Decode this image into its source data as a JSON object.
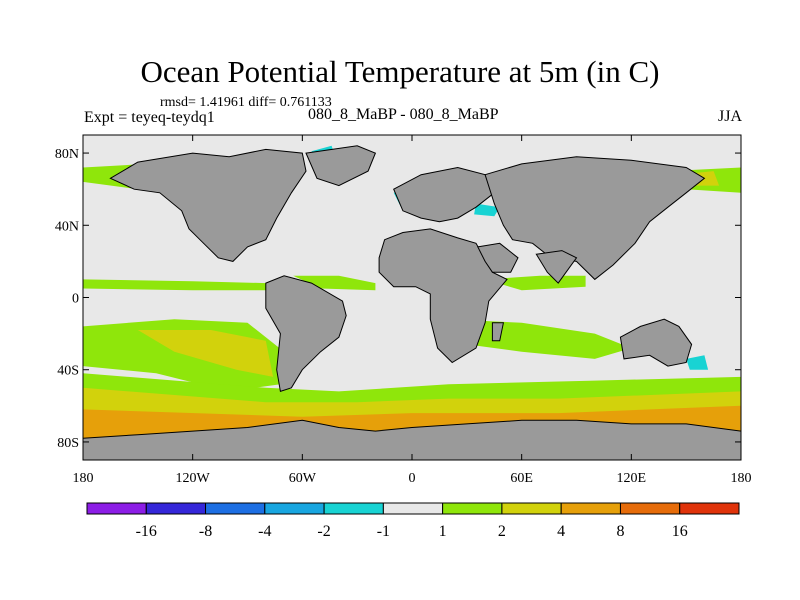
{
  "chart_data": {
    "type": "heatmap",
    "title": "Ocean Potential Temperature at 5m (in C)",
    "stats": "rmsd= 1.41961 diff= 0.761133",
    "experiment": "Expt = teyeq-teydq1",
    "center_label": "080_8_MaBP - 080_8_MaBP",
    "season": "JJA",
    "x_range": [
      -180,
      180
    ],
    "y_range": [
      -90,
      90
    ],
    "x_ticks": [
      {
        "value": -180,
        "label": "180"
      },
      {
        "value": -120,
        "label": "120W"
      },
      {
        "value": -60,
        "label": "60W"
      },
      {
        "value": 0,
        "label": "0"
      },
      {
        "value": 60,
        "label": "60E"
      },
      {
        "value": 120,
        "label": "120E"
      },
      {
        "value": 180,
        "label": "180"
      }
    ],
    "y_ticks": [
      {
        "value": 80,
        "label": "80N"
      },
      {
        "value": 40,
        "label": "40N"
      },
      {
        "value": 0,
        "label": "0"
      },
      {
        "value": -40,
        "label": "40S"
      },
      {
        "value": -80,
        "label": "80S"
      }
    ],
    "colorbar": {
      "colors": [
        "#8c1de6",
        "#3527d9",
        "#1d6fe3",
        "#18a6e0",
        "#18d3d3",
        "#e8e8e8",
        "#8fe60b",
        "#d2d20c",
        "#e6a00a",
        "#e66c0a",
        "#e0330a"
      ],
      "labels": [
        "-16",
        "-8",
        "-4",
        "-2",
        "-1",
        "1",
        "2",
        "4",
        "8",
        "16"
      ]
    },
    "land_color": "#9a9a9a",
    "regions": [
      {
        "name": "N Pacific warm band",
        "level": 2,
        "pts": [
          [
            -180,
            72
          ],
          [
            -145,
            74
          ],
          [
            -130,
            70
          ],
          [
            -128,
            62
          ],
          [
            -150,
            60
          ],
          [
            -180,
            64
          ]
        ]
      },
      {
        "name": "Arctic cool patch",
        "level": -1,
        "pts": [
          [
            -55,
            81
          ],
          [
            -44,
            84
          ],
          [
            -42,
            78
          ],
          [
            -52,
            76
          ]
        ]
      },
      {
        "name": "N Atlantic cool patch",
        "level": -1,
        "pts": [
          [
            -10,
            58
          ],
          [
            5,
            62
          ],
          [
            15,
            56
          ],
          [
            8,
            48
          ],
          [
            -6,
            50
          ]
        ]
      },
      {
        "name": "Med cool patch",
        "level": -1,
        "pts": [
          [
            35,
            52
          ],
          [
            48,
            50
          ],
          [
            45,
            45
          ],
          [
            34,
            46
          ]
        ]
      },
      {
        "name": "NE Pacific warm patch",
        "level": 2,
        "pts": [
          [
            140,
            70
          ],
          [
            180,
            72
          ],
          [
            180,
            58
          ],
          [
            150,
            60
          ]
        ]
      },
      {
        "name": "NE Pacific 4C patch",
        "level": 4,
        "pts": [
          [
            145,
            68
          ],
          [
            165,
            70
          ],
          [
            168,
            62
          ],
          [
            148,
            62
          ]
        ]
      },
      {
        "name": "Equatorial Pacific band",
        "level": 2,
        "pts": [
          [
            -180,
            10
          ],
          [
            -120,
            9
          ],
          [
            -80,
            8
          ],
          [
            -80,
            4
          ],
          [
            -120,
            4
          ],
          [
            -180,
            5
          ]
        ]
      },
      {
        "name": "Equatorial Atlantic band",
        "level": 2,
        "pts": [
          [
            -65,
            12
          ],
          [
            -40,
            12
          ],
          [
            -20,
            8
          ],
          [
            -20,
            4
          ],
          [
            -50,
            5
          ]
        ]
      },
      {
        "name": "Indian Ocean band",
        "level": 2,
        "pts": [
          [
            40,
            10
          ],
          [
            70,
            12
          ],
          [
            95,
            12
          ],
          [
            95,
            6
          ],
          [
            60,
            4
          ]
        ]
      },
      {
        "name": "S Pacific warm band",
        "level": 2,
        "pts": [
          [
            -180,
            -16
          ],
          [
            -130,
            -12
          ],
          [
            -90,
            -14
          ],
          [
            -70,
            -30
          ],
          [
            -72,
            -48
          ],
          [
            -100,
            -52
          ],
          [
            -140,
            -42
          ],
          [
            -180,
            -38
          ]
        ]
      },
      {
        "name": "S Pacific 4C band",
        "level": 4,
        "pts": [
          [
            -150,
            -18
          ],
          [
            -110,
            -18
          ],
          [
            -80,
            -24
          ],
          [
            -76,
            -44
          ],
          [
            -96,
            -40
          ],
          [
            -130,
            -30
          ]
        ]
      },
      {
        "name": "S Indian warm band",
        "level": 2,
        "pts": [
          [
            20,
            -12
          ],
          [
            60,
            -14
          ],
          [
            100,
            -20
          ],
          [
            120,
            -28
          ],
          [
            100,
            -34
          ],
          [
            60,
            -30
          ],
          [
            30,
            -26
          ]
        ]
      },
      {
        "name": "Southern Ocean 2C belt",
        "level": 2,
        "pts": [
          [
            -180,
            -42
          ],
          [
            -80,
            -50
          ],
          [
            -40,
            -52
          ],
          [
            20,
            -48
          ],
          [
            100,
            -46
          ],
          [
            180,
            -44
          ],
          [
            180,
            -62
          ],
          [
            -180,
            -62
          ]
        ]
      },
      {
        "name": "Southern Ocean 4C belt",
        "level": 4,
        "pts": [
          [
            -180,
            -50
          ],
          [
            -80,
            -58
          ],
          [
            -30,
            -58
          ],
          [
            20,
            -56
          ],
          [
            80,
            -56
          ],
          [
            180,
            -52
          ],
          [
            180,
            -70
          ],
          [
            -180,
            -70
          ]
        ]
      },
      {
        "name": "Southern Ocean 8C belt",
        "level": 8,
        "pts": [
          [
            -180,
            -62
          ],
          [
            -60,
            -66
          ],
          [
            0,
            -64
          ],
          [
            80,
            -64
          ],
          [
            180,
            -60
          ],
          [
            180,
            -86
          ],
          [
            -180,
            -86
          ]
        ]
      },
      {
        "name": "SW Pacific cool patch",
        "level": -1,
        "pts": [
          [
            150,
            -34
          ],
          [
            160,
            -32
          ],
          [
            162,
            -40
          ],
          [
            152,
            -40
          ]
        ]
      }
    ],
    "continents": [
      {
        "name": "North America",
        "pts": [
          [
            -150,
            75
          ],
          [
            -120,
            80
          ],
          [
            -100,
            78
          ],
          [
            -80,
            82
          ],
          [
            -60,
            80
          ],
          [
            -58,
            70
          ],
          [
            -66,
            58
          ],
          [
            -74,
            44
          ],
          [
            -80,
            32
          ],
          [
            -90,
            28
          ],
          [
            -98,
            20
          ],
          [
            -106,
            22
          ],
          [
            -114,
            30
          ],
          [
            -122,
            38
          ],
          [
            -126,
            48
          ],
          [
            -138,
            58
          ],
          [
            -152,
            60
          ],
          [
            -165,
            66
          ]
        ]
      },
      {
        "name": "Greenland",
        "pts": [
          [
            -58,
            80
          ],
          [
            -30,
            84
          ],
          [
            -20,
            80
          ],
          [
            -24,
            70
          ],
          [
            -40,
            62
          ],
          [
            -52,
            66
          ]
        ]
      },
      {
        "name": "Europe",
        "pts": [
          [
            -10,
            60
          ],
          [
            5,
            68
          ],
          [
            25,
            72
          ],
          [
            40,
            68
          ],
          [
            45,
            58
          ],
          [
            35,
            50
          ],
          [
            25,
            44
          ],
          [
            15,
            42
          ],
          [
            5,
            44
          ],
          [
            -5,
            48
          ]
        ]
      },
      {
        "name": "Asia",
        "pts": [
          [
            40,
            68
          ],
          [
            60,
            74
          ],
          [
            90,
            78
          ],
          [
            120,
            76
          ],
          [
            150,
            72
          ],
          [
            160,
            66
          ],
          [
            150,
            58
          ],
          [
            140,
            50
          ],
          [
            130,
            42
          ],
          [
            122,
            30
          ],
          [
            110,
            18
          ],
          [
            100,
            10
          ],
          [
            90,
            20
          ],
          [
            76,
            22
          ],
          [
            66,
            30
          ],
          [
            55,
            32
          ],
          [
            50,
            40
          ],
          [
            45,
            52
          ]
        ]
      },
      {
        "name": "Africa",
        "pts": [
          [
            -18,
            22
          ],
          [
            -15,
            32
          ],
          [
            -5,
            36
          ],
          [
            10,
            38
          ],
          [
            25,
            33
          ],
          [
            35,
            30
          ],
          [
            44,
            14
          ],
          [
            52,
            10
          ],
          [
            42,
            -2
          ],
          [
            40,
            -14
          ],
          [
            35,
            -28
          ],
          [
            22,
            -36
          ],
          [
            14,
            -28
          ],
          [
            10,
            -12
          ],
          [
            10,
            2
          ],
          [
            2,
            6
          ],
          [
            -10,
            6
          ],
          [
            -18,
            14
          ]
        ]
      },
      {
        "name": "Arabia",
        "pts": [
          [
            36,
            28
          ],
          [
            48,
            30
          ],
          [
            58,
            22
          ],
          [
            54,
            14
          ],
          [
            44,
            14
          ],
          [
            40,
            20
          ]
        ]
      },
      {
        "name": "India",
        "pts": [
          [
            68,
            24
          ],
          [
            82,
            26
          ],
          [
            90,
            22
          ],
          [
            80,
            8
          ],
          [
            74,
            14
          ]
        ]
      },
      {
        "name": "South America",
        "pts": [
          [
            -80,
            8
          ],
          [
            -70,
            12
          ],
          [
            -55,
            8
          ],
          [
            -38,
            -2
          ],
          [
            -36,
            -10
          ],
          [
            -40,
            -22
          ],
          [
            -50,
            -30
          ],
          [
            -60,
            -40
          ],
          [
            -66,
            -50
          ],
          [
            -72,
            -52
          ],
          [
            -74,
            -40
          ],
          [
            -72,
            -20
          ],
          [
            -80,
            -6
          ]
        ]
      },
      {
        "name": "Madagascar",
        "pts": [
          [
            44,
            -14
          ],
          [
            50,
            -14
          ],
          [
            48,
            -24
          ],
          [
            44,
            -24
          ]
        ]
      },
      {
        "name": "Australia",
        "pts": [
          [
            114,
            -22
          ],
          [
            125,
            -16
          ],
          [
            138,
            -12
          ],
          [
            146,
            -16
          ],
          [
            153,
            -26
          ],
          [
            150,
            -36
          ],
          [
            140,
            -38
          ],
          [
            130,
            -32
          ],
          [
            116,
            -34
          ]
        ]
      },
      {
        "name": "Antarctica",
        "pts": [
          [
            -180,
            -78
          ],
          [
            -150,
            -76
          ],
          [
            -120,
            -74
          ],
          [
            -90,
            -72
          ],
          [
            -60,
            -68
          ],
          [
            -40,
            -72
          ],
          [
            -20,
            -74
          ],
          [
            0,
            -72
          ],
          [
            30,
            -70
          ],
          [
            60,
            -68
          ],
          [
            90,
            -68
          ],
          [
            120,
            -70
          ],
          [
            150,
            -70
          ],
          [
            180,
            -74
          ],
          [
            180,
            -90
          ],
          [
            -180,
            -90
          ]
        ]
      }
    ]
  }
}
